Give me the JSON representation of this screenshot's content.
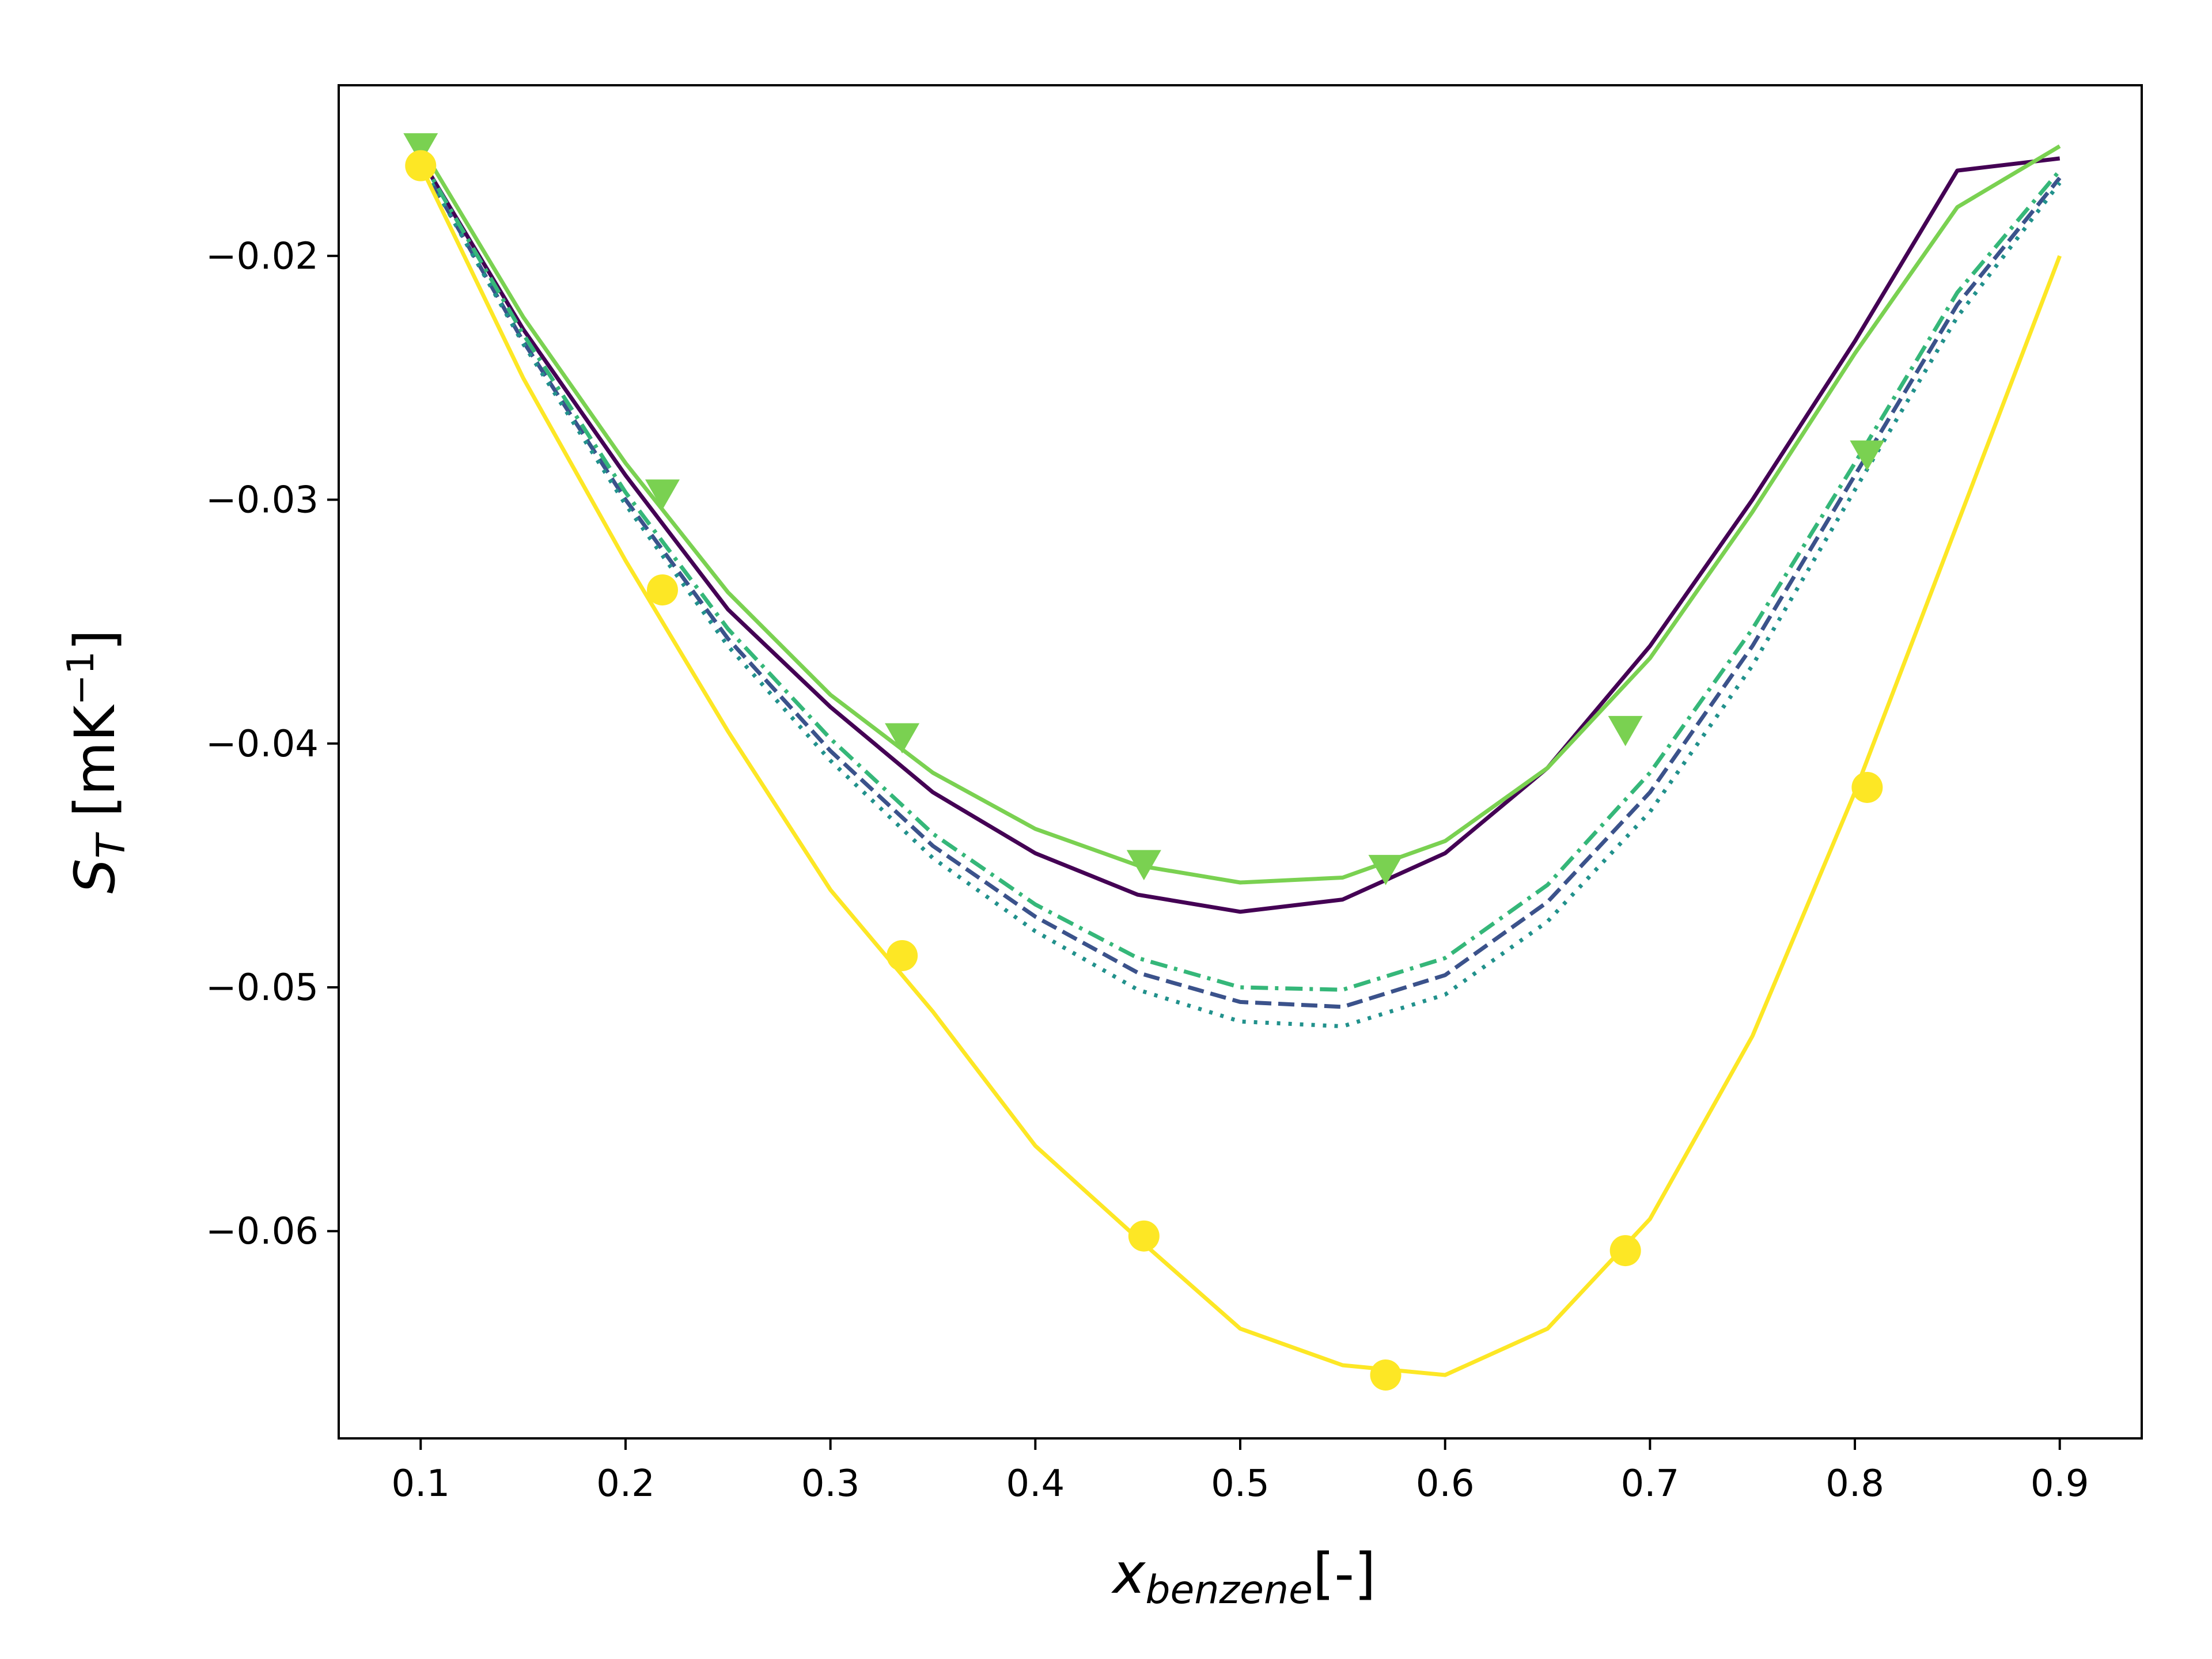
{
  "chart_data": {
    "type": "line",
    "xlabel_main": "x",
    "xlabel_sub": "benzene",
    "xlabel_suffix": "[-]",
    "ylabel_main": "S",
    "ylabel_sub": "T",
    "ylabel_unit": " [mK",
    "ylabel_exp": "−1",
    "ylabel_close": "]",
    "xlim": [
      0.06,
      0.94
    ],
    "ylim": [
      -0.0685,
      -0.013
    ],
    "x_ticks": [
      0.1,
      0.2,
      0.3,
      0.4,
      0.5,
      0.6,
      0.7,
      0.8,
      0.9
    ],
    "x_tick_labels": [
      "0.1",
      "0.2",
      "0.3",
      "0.4",
      "0.5",
      "0.6",
      "0.7",
      "0.8",
      "0.9"
    ],
    "y_ticks": [
      -0.02,
      -0.03,
      -0.04,
      -0.05,
      -0.06
    ],
    "y_tick_labels": [
      "−0.02",
      "−0.03",
      "−0.04",
      "−0.05",
      "−0.06"
    ],
    "grid": false,
    "legend": "none",
    "series": [
      {
        "color": "#440154",
        "style": "solid",
        "marker": "none",
        "x": [
          0.1,
          0.15,
          0.2,
          0.25,
          0.3,
          0.35,
          0.4,
          0.45,
          0.5,
          0.55,
          0.6,
          0.65,
          0.7,
          0.75,
          0.8,
          0.85,
          0.9
        ],
        "y": [
          -0.016,
          -0.023,
          -0.029,
          -0.0345,
          -0.0385,
          -0.042,
          -0.0445,
          -0.0462,
          -0.0469,
          -0.0464,
          -0.0445,
          -0.041,
          -0.036,
          -0.03,
          -0.0235,
          -0.0165,
          -0.016
        ]
      },
      {
        "color": "#3b528b",
        "style": "dashed",
        "marker": "none",
        "x": [
          0.1,
          0.15,
          0.2,
          0.25,
          0.3,
          0.35,
          0.4,
          0.45,
          0.5,
          0.55,
          0.6,
          0.65,
          0.7,
          0.75,
          0.8,
          0.85,
          0.9
        ],
        "y": [
          -0.0162,
          -0.0235,
          -0.03,
          -0.0357,
          -0.0403,
          -0.0442,
          -0.0471,
          -0.0494,
          -0.0506,
          -0.0508,
          -0.0495,
          -0.0465,
          -0.042,
          -0.036,
          -0.029,
          -0.022,
          -0.0168
        ]
      },
      {
        "color": "#21918c",
        "style": "dotted",
        "marker": "none",
        "x": [
          0.1,
          0.15,
          0.2,
          0.25,
          0.3,
          0.35,
          0.4,
          0.45,
          0.5,
          0.55,
          0.6,
          0.65,
          0.7,
          0.75,
          0.8,
          0.85,
          0.9
        ],
        "y": [
          -0.0162,
          -0.0236,
          -0.0302,
          -0.036,
          -0.0407,
          -0.0447,
          -0.0477,
          -0.0501,
          -0.0514,
          -0.0516,
          -0.0503,
          -0.0473,
          -0.0428,
          -0.0368,
          -0.0296,
          -0.0225,
          -0.017
        ]
      },
      {
        "color": "#35b779",
        "style": "dashdot",
        "marker": "none",
        "x": [
          0.1,
          0.15,
          0.2,
          0.25,
          0.3,
          0.35,
          0.4,
          0.45,
          0.5,
          0.55,
          0.6,
          0.65,
          0.7,
          0.75,
          0.8,
          0.85,
          0.9
        ],
        "y": [
          -0.016,
          -0.0232,
          -0.0297,
          -0.0353,
          -0.0398,
          -0.0437,
          -0.0466,
          -0.0488,
          -0.05,
          -0.0501,
          -0.0488,
          -0.0458,
          -0.0412,
          -0.0353,
          -0.0285,
          -0.0215,
          -0.0165
        ]
      },
      {
        "color": "#7ad151",
        "style": "solid",
        "marker": "triangle-down",
        "x": [
          0.1,
          0.15,
          0.2,
          0.25,
          0.3,
          0.35,
          0.4,
          0.45,
          0.5,
          0.55,
          0.6,
          0.65,
          0.7,
          0.75,
          0.8,
          0.85,
          0.9
        ],
        "y": [
          -0.0155,
          -0.0225,
          -0.0285,
          -0.0338,
          -0.038,
          -0.0412,
          -0.0435,
          -0.045,
          -0.0457,
          -0.0455,
          -0.044,
          -0.041,
          -0.0365,
          -0.0305,
          -0.024,
          -0.018,
          -0.0155
        ],
        "marker_x": [
          0.1,
          0.218,
          0.335,
          0.453,
          0.571,
          0.688,
          0.806
        ],
        "marker_y": [
          -0.0155,
          -0.0297,
          -0.0397,
          -0.0449,
          -0.0451,
          -0.0394,
          -0.0281
        ]
      },
      {
        "color": "#fde725",
        "style": "solid",
        "marker": "circle",
        "x": [
          0.1,
          0.15,
          0.2,
          0.25,
          0.3,
          0.35,
          0.4,
          0.45,
          0.5,
          0.55,
          0.6,
          0.65,
          0.7,
          0.75,
          0.8,
          0.85,
          0.9
        ],
        "y": [
          -0.0163,
          -0.025,
          -0.0325,
          -0.0395,
          -0.046,
          -0.051,
          -0.0565,
          -0.0603,
          -0.064,
          -0.0655,
          -0.0659,
          -0.064,
          -0.0595,
          -0.052,
          -0.042,
          -0.031,
          -0.02
        ],
        "marker_x": [
          0.1,
          0.218,
          0.335,
          0.453,
          0.571,
          0.688,
          0.806
        ],
        "marker_y": [
          -0.0163,
          -0.0337,
          -0.0487,
          -0.0602,
          -0.0659,
          -0.0608,
          -0.0418
        ]
      }
    ]
  }
}
